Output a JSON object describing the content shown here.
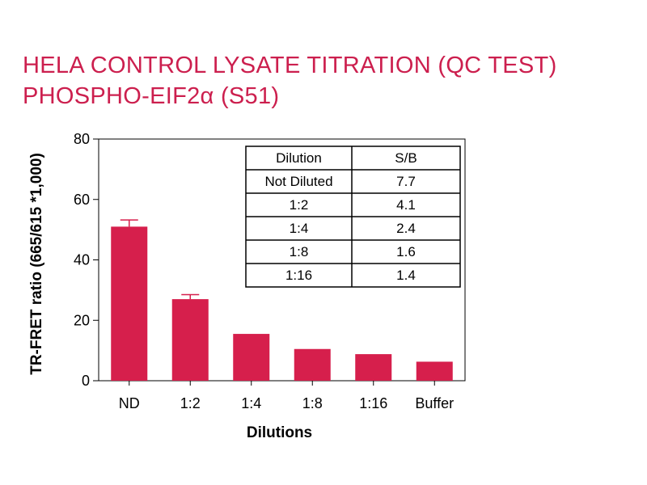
{
  "chart_data": {
    "type": "bar",
    "title": "HELA CONTROL LYSATE TITRATION (QC TEST)",
    "subtitle": "PHOSPHO-EIF2α (S51)",
    "xlabel": "Dilutions",
    "ylabel": "TR-FRET ratio (665/615 *1,000)",
    "categories": [
      "ND",
      "1:2",
      "1:4",
      "1:8",
      "1:16",
      "Buffer"
    ],
    "values": [
      51,
      27,
      15.5,
      10.5,
      8.8,
      6.3
    ],
    "error_upper": [
      2.2,
      1.5,
      0,
      0,
      0,
      0
    ],
    "ylim": [
      0,
      80
    ],
    "yticks": [
      0,
      20,
      40,
      60,
      80
    ],
    "bar_color": "#d61f4c",
    "grid": false,
    "legend": "none",
    "table": {
      "headers": [
        "Dilution",
        "S/B"
      ],
      "rows": [
        [
          "Not Diluted",
          "7.7"
        ],
        [
          "1:2",
          "4.1"
        ],
        [
          "1:4",
          "2.4"
        ],
        [
          "1:8",
          "1.6"
        ],
        [
          "1:16",
          "1.4"
        ]
      ],
      "placement": "top-right"
    }
  }
}
